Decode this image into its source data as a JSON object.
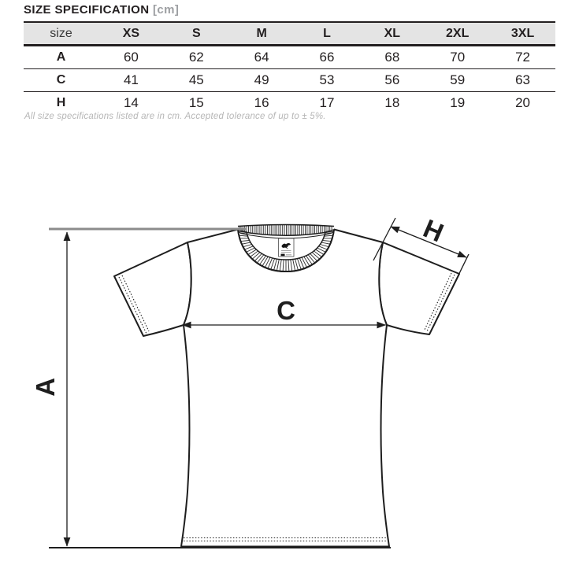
{
  "title": {
    "main": "SIZE SPECIFICATION",
    "unit": "[cm]"
  },
  "table": {
    "size_label": "size",
    "sizes": [
      "XS",
      "S",
      "M",
      "L",
      "XL",
      "2XL",
      "3XL"
    ],
    "rows": [
      {
        "label": "A",
        "values": [
          "60",
          "62",
          "64",
          "66",
          "68",
          "70",
          "72"
        ]
      },
      {
        "label": "C",
        "values": [
          "41",
          "45",
          "49",
          "53",
          "56",
          "59",
          "63"
        ]
      },
      {
        "label": "H",
        "values": [
          "14",
          "15",
          "16",
          "17",
          "18",
          "19",
          "20"
        ]
      }
    ]
  },
  "footnote": "All size specifications listed are in cm. Accepted tolerance of up to ± 5%.",
  "diagram": {
    "label_a": "A",
    "label_c": "C",
    "label_h": "H",
    "collar_label_icon": "swallow-bird"
  },
  "colors": {
    "table_header_bg": "#e4e4e4",
    "rule_black": "#231f20",
    "guide_gray": "#8c8c8c",
    "footnote_gray": "#b6b6b6"
  }
}
